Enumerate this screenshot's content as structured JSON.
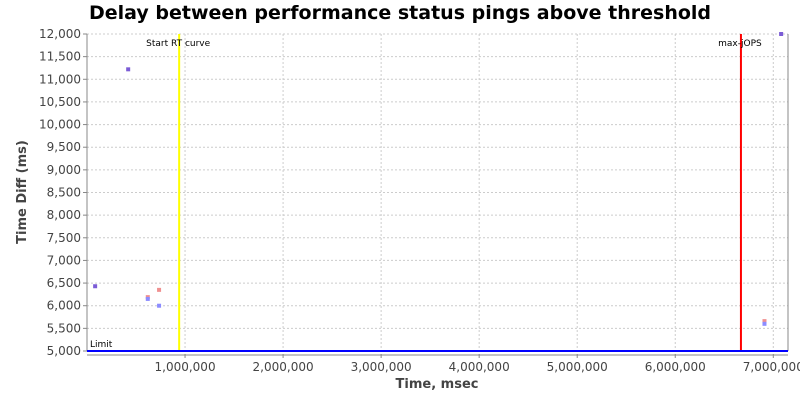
{
  "chart_data": {
    "type": "scatter",
    "title": "Delay between performance status pings above threshold",
    "xlabel": "Time, msec",
    "ylabel": "Time Diff (ms)",
    "xlim": [
      0,
      7150000
    ],
    "ylim": [
      5000,
      12000
    ],
    "grid": true,
    "x_ticks": [
      1000000,
      2000000,
      3000000,
      4000000,
      5000000,
      6000000,
      7000000
    ],
    "x_tick_labels": [
      "1,000,000",
      "2,000,000",
      "3,000,000",
      "4,000,000",
      "5,000,000",
      "6,000,000",
      "7,000,000"
    ],
    "y_ticks": [
      5000,
      5500,
      6000,
      6500,
      7000,
      7500,
      8000,
      8500,
      9000,
      9500,
      10000,
      10500,
      11000,
      11500,
      12000
    ],
    "y_tick_labels": [
      "5,000",
      "5,500",
      "6,000",
      "6,500",
      "7,000",
      "7,500",
      "8,000",
      "8,500",
      "9,000",
      "9,500",
      "10,000",
      "10,500",
      "11,000",
      "11,500",
      "12,000"
    ],
    "series": [
      {
        "color": "#7b5cd6",
        "points": [
          [
            83000,
            6430
          ],
          [
            420000,
            11220
          ],
          [
            7080000,
            12000
          ]
        ]
      },
      {
        "color": "#f09090",
        "points": [
          [
            620000,
            6190
          ],
          [
            735000,
            6350
          ],
          [
            6910000,
            5660
          ]
        ]
      },
      {
        "color": "#8c8cff",
        "points": [
          [
            620000,
            6150
          ],
          [
            735000,
            6000
          ],
          [
            6910000,
            5600
          ]
        ]
      }
    ],
    "markers": [
      {
        "label": "Start RT curve",
        "x": 940000,
        "color": "#ffff00"
      },
      {
        "label": "max-jOPS",
        "x": 6670000,
        "color": "#ff0000"
      }
    ],
    "limit": {
      "label": "Limit",
      "y": 5000,
      "color": "#0000ff"
    }
  }
}
